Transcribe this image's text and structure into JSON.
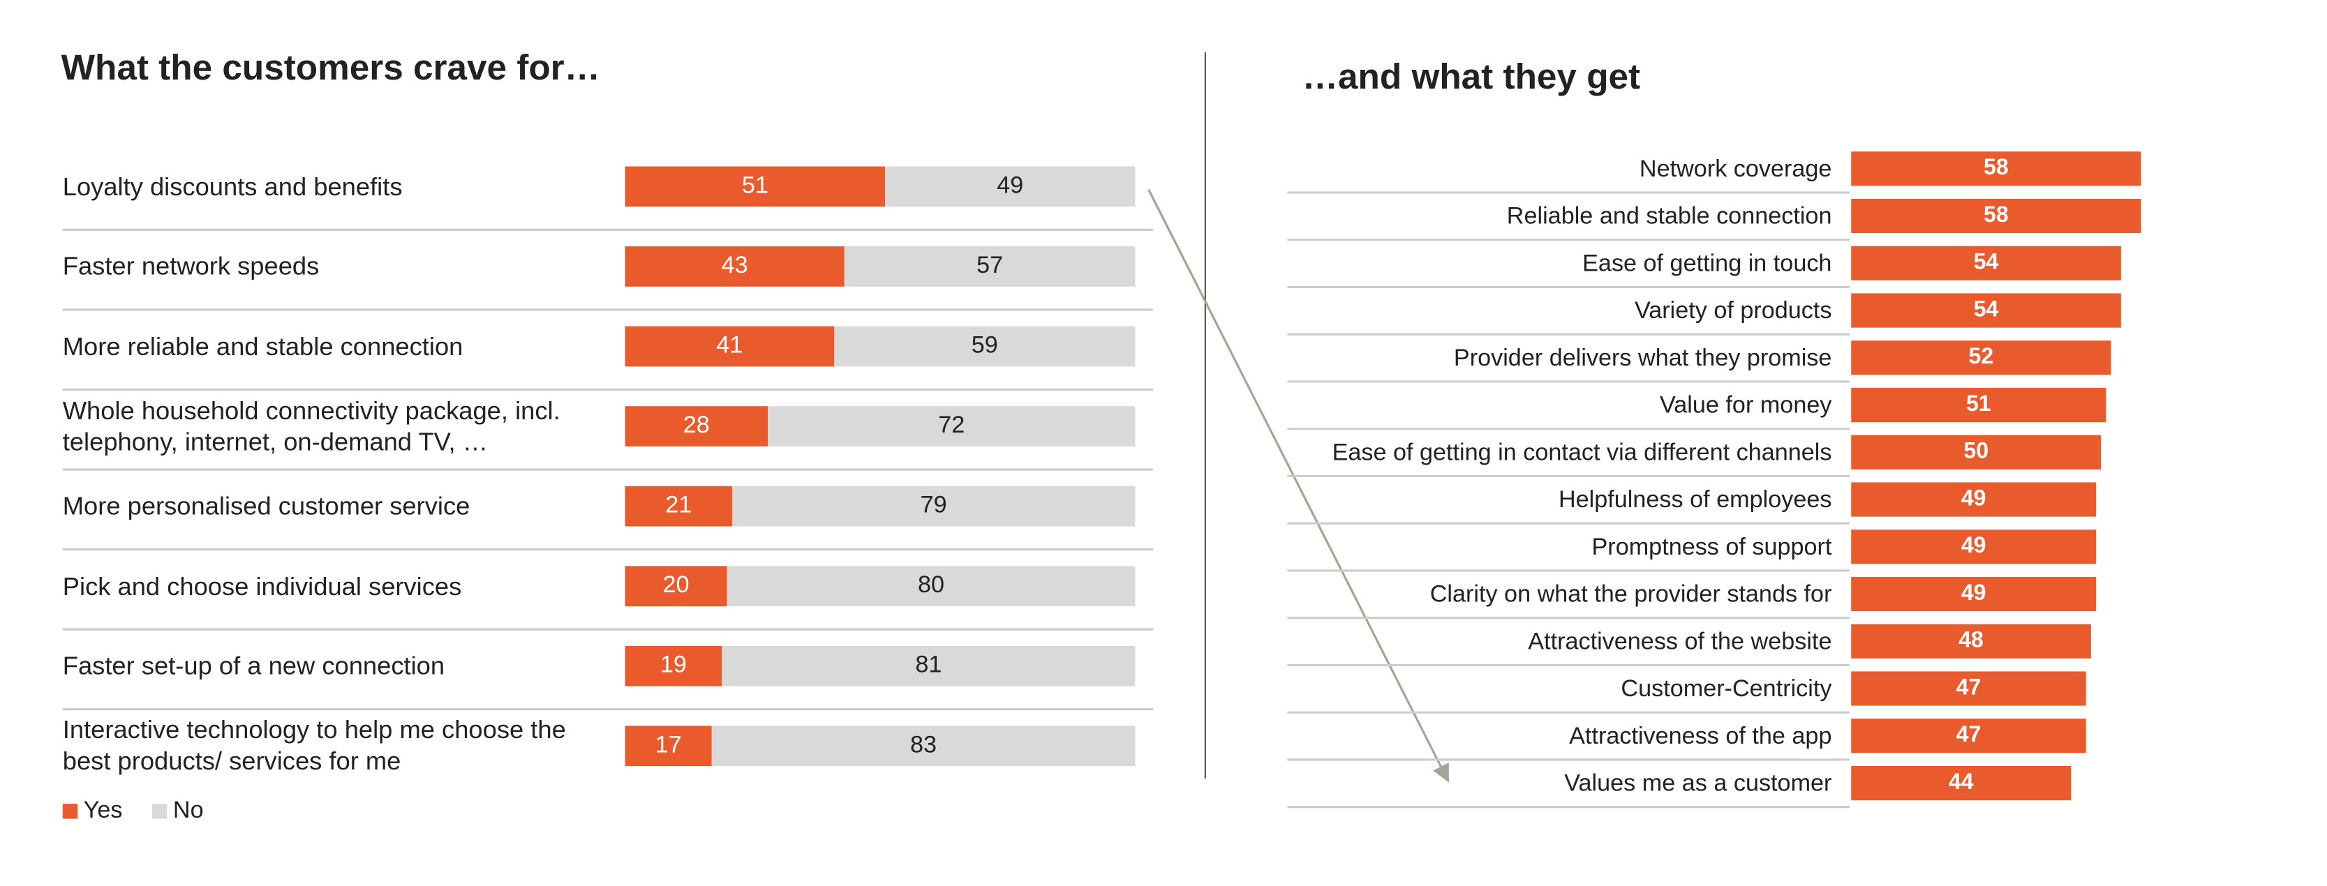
{
  "chart_data": [
    {
      "type": "stacked-bar",
      "title": "What the customers crave for…",
      "categories": [
        "Loyalty discounts and benefits",
        "Faster network speeds",
        "More reliable and stable connection",
        "Whole household connectivity package, incl. telephony, internet, on-demand TV, …",
        "More personalised customer service",
        "Pick and choose individual services",
        "Faster set-up of a new connection",
        "Interactive technology to help me choose the best products/ services for me"
      ],
      "series": [
        {
          "name": "Yes",
          "color": "#e95b2c",
          "values": [
            51,
            43,
            41,
            28,
            21,
            20,
            19,
            17
          ]
        },
        {
          "name": "No",
          "color": "#d9d9d9",
          "values": [
            49,
            57,
            59,
            72,
            79,
            80,
            81,
            83
          ]
        }
      ]
    },
    {
      "type": "bar",
      "title": "…and what they get",
      "categories": [
        "Network coverage",
        "Reliable and stable connection",
        "Ease of getting in touch",
        "Variety of products",
        "Provider delivers what they promise",
        "Value for money",
        "Ease of getting in contact via different channels",
        "Helpfulness of employees",
        "Promptness of support",
        "Clarity on what the provider stands for",
        "Attractiveness of the website",
        "Customer-Centricity",
        "Attractiveness of the app",
        "Values me as a customer"
      ],
      "values": [
        58,
        58,
        54,
        54,
        52,
        51,
        50,
        49,
        49,
        49,
        48,
        47,
        47,
        44
      ],
      "color": "#e95b2c"
    }
  ]
}
